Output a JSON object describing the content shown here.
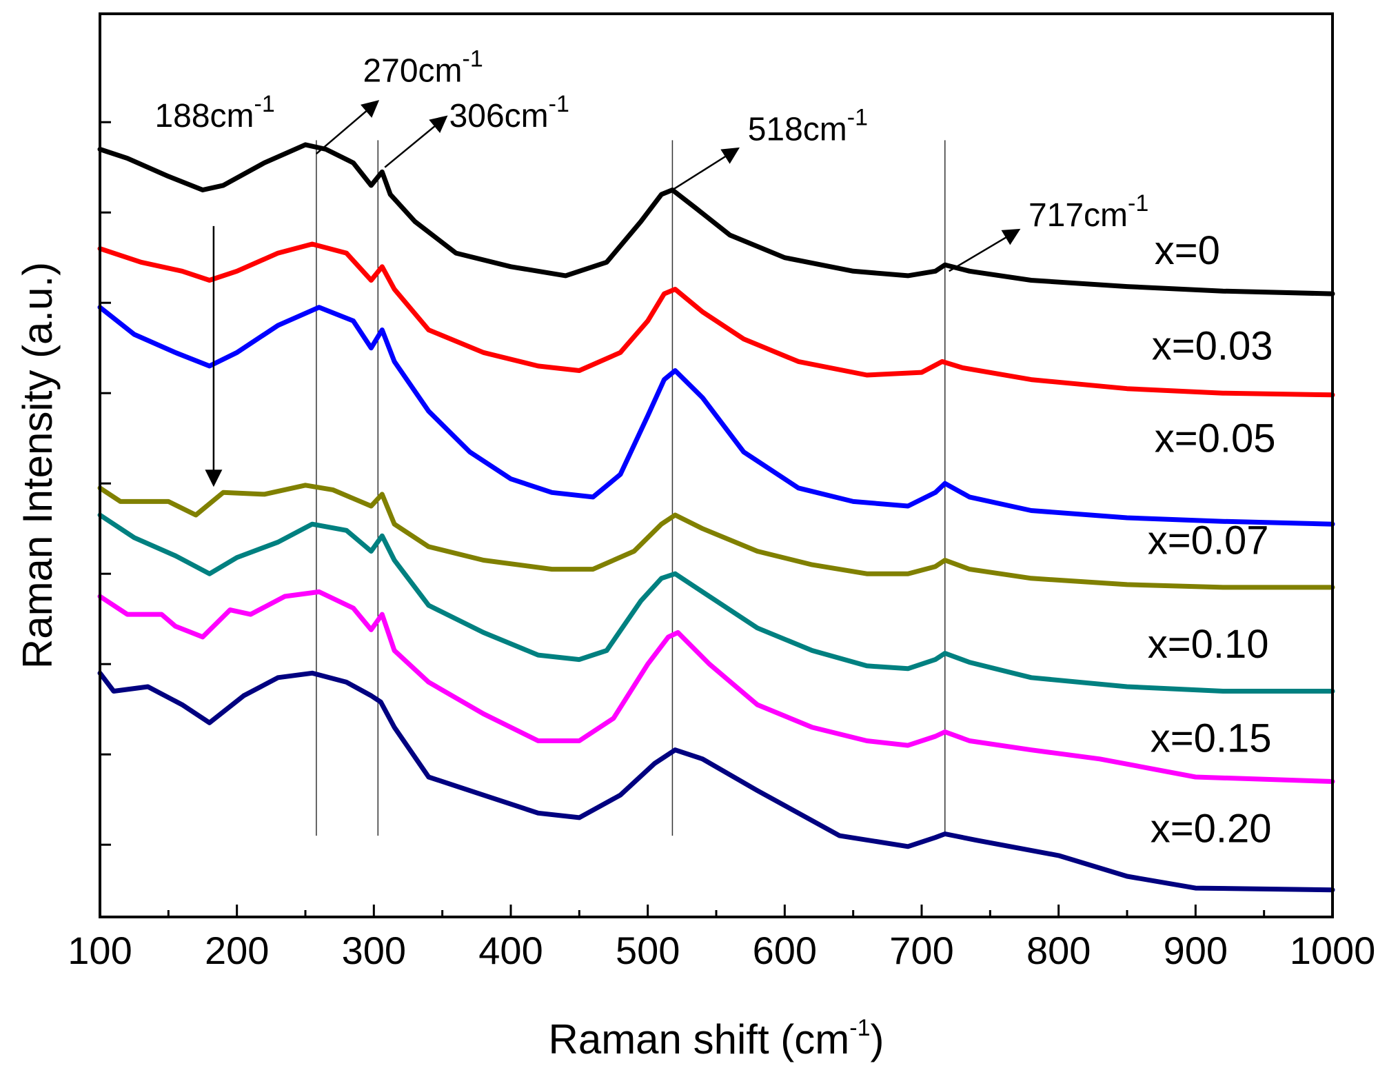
{
  "chart_data": {
    "type": "line",
    "title": "",
    "xlabel": "Raman shift (cm",
    "xlabel_sup": "-1",
    "xlabel_end": ")",
    "ylabel": "Raman Intensity (a.u.)",
    "xlim": [
      100,
      1000
    ],
    "ylim": [
      0,
      10
    ],
    "x_ticks": [
      "100",
      "200",
      "300",
      "400",
      "500",
      "600",
      "700",
      "800",
      "900",
      "1000"
    ],
    "x_tick_values": [
      100,
      200,
      300,
      400,
      500,
      600,
      700,
      800,
      900,
      1000
    ],
    "y_tick_values": [
      0.8,
      1.8,
      2.8,
      3.8,
      4.8,
      5.8,
      6.8,
      7.8,
      8.8
    ],
    "grid": false,
    "series": [
      {
        "name": "x=0",
        "color": "#000000",
        "points": [
          [
            100,
            8.5
          ],
          [
            120,
            8.4
          ],
          [
            150,
            8.2
          ],
          [
            175,
            8.05
          ],
          [
            190,
            8.1
          ],
          [
            220,
            8.35
          ],
          [
            250,
            8.55
          ],
          [
            265,
            8.5
          ],
          [
            285,
            8.35
          ],
          [
            298,
            8.1
          ],
          [
            306,
            8.25
          ],
          [
            312,
            8.0
          ],
          [
            330,
            7.7
          ],
          [
            360,
            7.35
          ],
          [
            400,
            7.2
          ],
          [
            440,
            7.1
          ],
          [
            470,
            7.25
          ],
          [
            495,
            7.7
          ],
          [
            510,
            8.0
          ],
          [
            518,
            8.05
          ],
          [
            535,
            7.85
          ],
          [
            560,
            7.55
          ],
          [
            600,
            7.3
          ],
          [
            650,
            7.15
          ],
          [
            690,
            7.1
          ],
          [
            710,
            7.15
          ],
          [
            717,
            7.22
          ],
          [
            735,
            7.15
          ],
          [
            780,
            7.05
          ],
          [
            850,
            6.98
          ],
          [
            920,
            6.93
          ],
          [
            1000,
            6.9
          ]
        ],
        "label_x": 870,
        "label_y": 7.23
      },
      {
        "name": "x=0.03",
        "color": "#ff0000",
        "points": [
          [
            100,
            7.4
          ],
          [
            130,
            7.25
          ],
          [
            160,
            7.15
          ],
          [
            180,
            7.05
          ],
          [
            200,
            7.15
          ],
          [
            230,
            7.35
          ],
          [
            255,
            7.45
          ],
          [
            280,
            7.35
          ],
          [
            298,
            7.05
          ],
          [
            306,
            7.2
          ],
          [
            315,
            6.95
          ],
          [
            340,
            6.5
          ],
          [
            380,
            6.25
          ],
          [
            420,
            6.1
          ],
          [
            450,
            6.05
          ],
          [
            480,
            6.25
          ],
          [
            500,
            6.6
          ],
          [
            512,
            6.9
          ],
          [
            520,
            6.95
          ],
          [
            540,
            6.7
          ],
          [
            570,
            6.4
          ],
          [
            610,
            6.15
          ],
          [
            660,
            6.0
          ],
          [
            700,
            6.03
          ],
          [
            715,
            6.15
          ],
          [
            730,
            6.08
          ],
          [
            780,
            5.95
          ],
          [
            850,
            5.85
          ],
          [
            920,
            5.8
          ],
          [
            1000,
            5.78
          ]
        ],
        "label_x": 868,
        "label_y": 6.17
      },
      {
        "name": "x=0.05",
        "color": "#0000ff",
        "points": [
          [
            100,
            6.75
          ],
          [
            125,
            6.45
          ],
          [
            155,
            6.25
          ],
          [
            180,
            6.1
          ],
          [
            200,
            6.25
          ],
          [
            230,
            6.55
          ],
          [
            260,
            6.75
          ],
          [
            285,
            6.6
          ],
          [
            298,
            6.3
          ],
          [
            306,
            6.5
          ],
          [
            315,
            6.15
          ],
          [
            340,
            5.6
          ],
          [
            370,
            5.15
          ],
          [
            400,
            4.85
          ],
          [
            430,
            4.7
          ],
          [
            460,
            4.65
          ],
          [
            480,
            4.9
          ],
          [
            500,
            5.55
          ],
          [
            512,
            5.95
          ],
          [
            520,
            6.05
          ],
          [
            540,
            5.75
          ],
          [
            570,
            5.15
          ],
          [
            610,
            4.75
          ],
          [
            650,
            4.6
          ],
          [
            690,
            4.55
          ],
          [
            710,
            4.7
          ],
          [
            717,
            4.8
          ],
          [
            735,
            4.65
          ],
          [
            780,
            4.5
          ],
          [
            850,
            4.42
          ],
          [
            920,
            4.38
          ],
          [
            1000,
            4.35
          ]
        ],
        "label_x": 870,
        "label_y": 5.15
      },
      {
        "name": "x=0.07",
        "color": "#808000",
        "points": [
          [
            100,
            4.75
          ],
          [
            115,
            4.6
          ],
          [
            150,
            4.6
          ],
          [
            170,
            4.45
          ],
          [
            190,
            4.7
          ],
          [
            220,
            4.68
          ],
          [
            250,
            4.78
          ],
          [
            270,
            4.73
          ],
          [
            298,
            4.55
          ],
          [
            306,
            4.68
          ],
          [
            315,
            4.35
          ],
          [
            340,
            4.1
          ],
          [
            380,
            3.95
          ],
          [
            430,
            3.85
          ],
          [
            460,
            3.85
          ],
          [
            490,
            4.05
          ],
          [
            510,
            4.35
          ],
          [
            520,
            4.45
          ],
          [
            540,
            4.3
          ],
          [
            580,
            4.05
          ],
          [
            620,
            3.9
          ],
          [
            660,
            3.8
          ],
          [
            690,
            3.8
          ],
          [
            710,
            3.88
          ],
          [
            717,
            3.95
          ],
          [
            735,
            3.85
          ],
          [
            780,
            3.75
          ],
          [
            850,
            3.68
          ],
          [
            920,
            3.65
          ],
          [
            1000,
            3.65
          ]
        ],
        "label_x": 865,
        "label_y": 4.02
      },
      {
        "name": "x=0.10",
        "color": "#008080",
        "points": [
          [
            100,
            4.45
          ],
          [
            125,
            4.2
          ],
          [
            155,
            4.0
          ],
          [
            180,
            3.8
          ],
          [
            200,
            3.98
          ],
          [
            230,
            4.15
          ],
          [
            255,
            4.35
          ],
          [
            280,
            4.28
          ],
          [
            298,
            4.05
          ],
          [
            306,
            4.22
          ],
          [
            315,
            3.95
          ],
          [
            340,
            3.45
          ],
          [
            380,
            3.15
          ],
          [
            420,
            2.9
          ],
          [
            450,
            2.85
          ],
          [
            470,
            2.95
          ],
          [
            495,
            3.5
          ],
          [
            510,
            3.75
          ],
          [
            520,
            3.8
          ],
          [
            540,
            3.6
          ],
          [
            580,
            3.2
          ],
          [
            620,
            2.95
          ],
          [
            660,
            2.78
          ],
          [
            690,
            2.75
          ],
          [
            710,
            2.85
          ],
          [
            717,
            2.92
          ],
          [
            735,
            2.82
          ],
          [
            780,
            2.65
          ],
          [
            850,
            2.55
          ],
          [
            920,
            2.5
          ],
          [
            1000,
            2.5
          ]
        ],
        "label_x": 865,
        "label_y": 2.87
      },
      {
        "name": "x=0.15",
        "color": "#ff00ff",
        "points": [
          [
            100,
            3.55
          ],
          [
            120,
            3.35
          ],
          [
            145,
            3.35
          ],
          [
            155,
            3.22
          ],
          [
            175,
            3.1
          ],
          [
            195,
            3.4
          ],
          [
            210,
            3.35
          ],
          [
            235,
            3.55
          ],
          [
            260,
            3.6
          ],
          [
            285,
            3.42
          ],
          [
            298,
            3.18
          ],
          [
            306,
            3.35
          ],
          [
            315,
            2.95
          ],
          [
            340,
            2.6
          ],
          [
            380,
            2.25
          ],
          [
            420,
            1.95
          ],
          [
            450,
            1.95
          ],
          [
            475,
            2.2
          ],
          [
            500,
            2.8
          ],
          [
            515,
            3.1
          ],
          [
            522,
            3.15
          ],
          [
            545,
            2.8
          ],
          [
            580,
            2.35
          ],
          [
            620,
            2.1
          ],
          [
            660,
            1.95
          ],
          [
            690,
            1.9
          ],
          [
            710,
            2.0
          ],
          [
            717,
            2.05
          ],
          [
            735,
            1.95
          ],
          [
            780,
            1.85
          ],
          [
            830,
            1.75
          ],
          [
            900,
            1.55
          ],
          [
            1000,
            1.5
          ]
        ],
        "label_x": 867,
        "label_y": 1.83
      },
      {
        "name": "x=0.20",
        "color": "#000080",
        "points": [
          [
            100,
            2.7
          ],
          [
            110,
            2.5
          ],
          [
            135,
            2.55
          ],
          [
            160,
            2.35
          ],
          [
            180,
            2.15
          ],
          [
            205,
            2.45
          ],
          [
            230,
            2.65
          ],
          [
            255,
            2.7
          ],
          [
            280,
            2.6
          ],
          [
            298,
            2.45
          ],
          [
            305,
            2.38
          ],
          [
            315,
            2.1
          ],
          [
            340,
            1.55
          ],
          [
            380,
            1.35
          ],
          [
            420,
            1.15
          ],
          [
            450,
            1.1
          ],
          [
            480,
            1.35
          ],
          [
            505,
            1.7
          ],
          [
            520,
            1.85
          ],
          [
            540,
            1.75
          ],
          [
            580,
            1.4
          ],
          [
            610,
            1.15
          ],
          [
            640,
            0.9
          ],
          [
            690,
            0.78
          ],
          [
            710,
            0.88
          ],
          [
            717,
            0.92
          ],
          [
            740,
            0.85
          ],
          [
            800,
            0.68
          ],
          [
            850,
            0.45
          ],
          [
            900,
            0.32
          ],
          [
            1000,
            0.3
          ]
        ],
        "label_x": 867,
        "label_y": 0.83
      }
    ],
    "annotations": [
      {
        "text": "188cm",
        "sup": "-1",
        "x": 140,
        "y": 8.75
      },
      {
        "text": "270cm",
        "sup": "-1",
        "x": 292,
        "y": 9.25
      },
      {
        "text": "306cm",
        "sup": "-1",
        "x": 355,
        "y": 8.75
      },
      {
        "text": "518cm",
        "sup": "-1",
        "x": 573,
        "y": 8.6
      },
      {
        "text": "717cm",
        "sup": "-1",
        "x": 778,
        "y": 7.65
      }
    ],
    "vertical_lines": [
      258,
      303,
      518,
      717
    ],
    "down_arrow": {
      "x": 183,
      "y_from": 7.65,
      "y_to": 4.8
    },
    "diagonal_arrows": [
      {
        "x1": 258,
        "y1": 8.45,
        "x2": 302,
        "y2": 9.02
      },
      {
        "x1": 308,
        "y1": 8.3,
        "x2": 352,
        "y2": 8.85
      },
      {
        "x1": 518,
        "y1": 8.05,
        "x2": 565,
        "y2": 8.5
      },
      {
        "x1": 720,
        "y1": 7.15,
        "x2": 770,
        "y2": 7.6
      }
    ]
  }
}
